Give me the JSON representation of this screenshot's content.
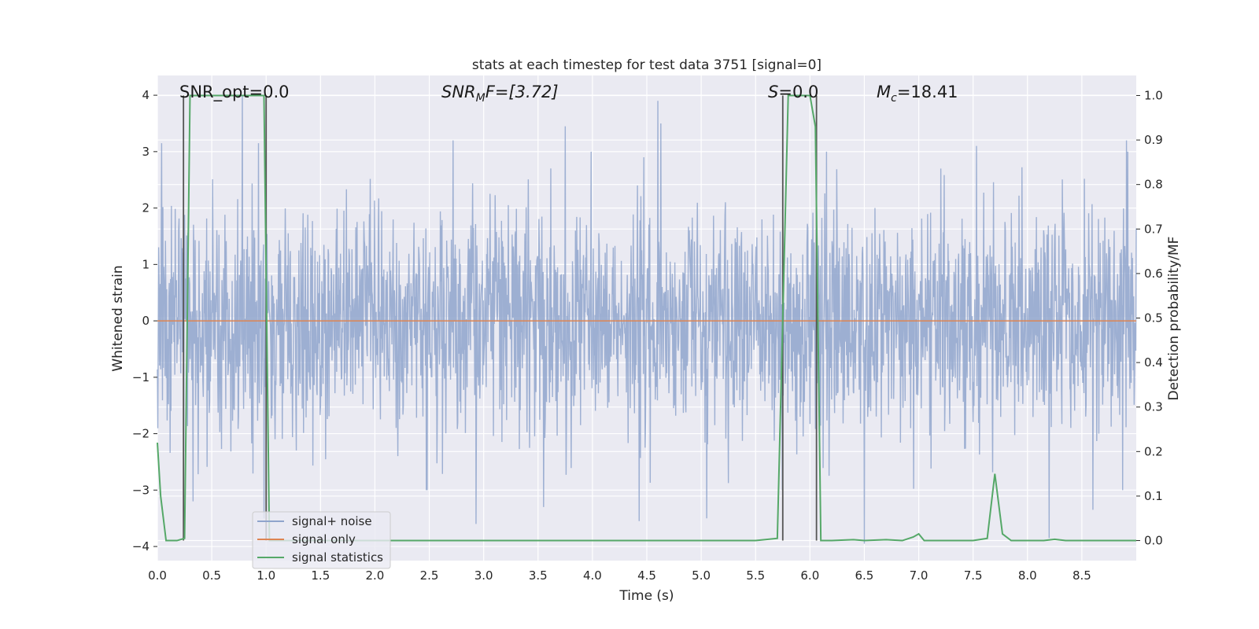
{
  "chart_data": {
    "type": "line",
    "title": "stats at each timestep for test data 3751 [signal=0]",
    "xlabel": "Time (s)",
    "ylabel": "Whitened strain",
    "ylabel_right": "Detection probability/MF",
    "xlim": [
      0,
      9
    ],
    "ylim": [
      -4.25,
      4.35
    ],
    "ylim_right": [
      -0.045,
      1.045
    ],
    "x_ticks": [
      "0.0",
      "0.5",
      "1.0",
      "1.5",
      "2.0",
      "2.5",
      "3.0",
      "3.5",
      "4.0",
      "4.5",
      "5.0",
      "5.5",
      "6.0",
      "6.5",
      "7.0",
      "7.5",
      "8.0",
      "8.5"
    ],
    "x_tick_values": [
      0,
      0.5,
      1,
      1.5,
      2,
      2.5,
      3,
      3.5,
      4,
      4.5,
      5,
      5.5,
      6,
      6.5,
      7,
      7.5,
      8,
      8.5
    ],
    "y_ticks": [
      "4",
      "3",
      "2",
      "1",
      "0",
      "−1",
      "−2",
      "−3",
      "−4"
    ],
    "y_tick_values": [
      4,
      3,
      2,
      1,
      0,
      -1,
      -2,
      -3,
      -4
    ],
    "y2_ticks": [
      "1.0",
      "0.9",
      "0.8",
      "0.7",
      "0.6",
      "0.5",
      "0.4",
      "0.3",
      "0.2",
      "0.1",
      "0.0"
    ],
    "y2_tick_values": [
      1,
      0.9,
      0.8,
      0.7,
      0.6,
      0.5,
      0.4,
      0.3,
      0.2,
      0.1,
      0
    ],
    "grid": true,
    "legend_placement": "lower-left",
    "annotations": [
      {
        "id": "snr-opt",
        "x": 0.2,
        "text": "SNR_opt=0.0"
      },
      {
        "id": "snr-mf",
        "x": 2.6,
        "text": "SNR_MF=[3.72]",
        "base": "SNR",
        "sub": "M",
        "rest": "F=[3.72]"
      },
      {
        "id": "s",
        "x": 5.6,
        "text": "S=0.0",
        "base": "S",
        "rest": "=0.0"
      },
      {
        "id": "mc",
        "x": 6.6,
        "text": "M_c=18.41",
        "base": "M",
        "sub": "c",
        "rest": "=18.41"
      }
    ],
    "series": [
      {
        "name": "signal+ noise",
        "color": "#8fa4cc",
        "axis": "left",
        "sample_rate": 256,
        "amplitude_rms": 1.0,
        "seed": 3751,
        "peaks": [
          [
            0.04,
            3.15
          ],
          [
            0.78,
            4.0
          ],
          [
            0.93,
            3.15
          ],
          [
            2.72,
            3.2
          ],
          [
            3.75,
            3.45
          ],
          [
            4.6,
            3.9
          ],
          [
            4.63,
            3.5
          ],
          [
            7.53,
            3.1
          ],
          [
            8.91,
            3.2
          ],
          [
            0.33,
            -3.2
          ],
          [
            0.98,
            -3.5
          ],
          [
            2.93,
            -3.6
          ],
          [
            3.55,
            -3.3
          ],
          [
            4.43,
            -3.55
          ],
          [
            5.05,
            -3.5
          ],
          [
            6.5,
            -3.95
          ],
          [
            8.2,
            -3.85
          ],
          [
            8.6,
            -3.35
          ]
        ]
      },
      {
        "name": "signal only",
        "color": "#dd8452",
        "axis": "left",
        "x": [
          0,
          9
        ],
        "y": [
          0,
          0
        ]
      },
      {
        "name": "signal statistics",
        "color": "#55a868",
        "axis": "right",
        "x": [
          0,
          0.03,
          0.08,
          0.18,
          0.25,
          0.3,
          0.5,
          0.98,
          1.03,
          1.08,
          1.5,
          2.0,
          3.0,
          4.0,
          5.0,
          5.5,
          5.7,
          5.75,
          5.8,
          5.85,
          6.0,
          6.05,
          6.1,
          6.2,
          6.4,
          6.5,
          6.7,
          6.85,
          6.95,
          7.0,
          7.05,
          7.5,
          7.63,
          7.7,
          7.77,
          7.85,
          8.0,
          8.15,
          8.25,
          8.35,
          8.5,
          9.0
        ],
        "y": [
          0.22,
          0.1,
          0.0,
          0.0,
          0.005,
          1.0,
          1.0,
          1.0,
          0.0,
          0.0,
          0.0,
          0.0,
          0.0,
          0.0,
          0.0,
          0.0,
          0.005,
          0.5,
          1.0,
          1.0,
          1.0,
          0.93,
          0.0,
          0.0,
          0.002,
          0.0,
          0.002,
          0.0,
          0.008,
          0.015,
          0.0,
          0.0,
          0.005,
          0.15,
          0.015,
          0.0,
          0.0,
          0.0,
          0.003,
          0.0,
          0.0,
          0.0
        ]
      }
    ],
    "markers": [
      {
        "x": 0.24,
        "y_right": [
          0.0,
          1.0
        ],
        "color": "#555555"
      },
      {
        "x": 1.0,
        "y_right": [
          0.0,
          1.0
        ],
        "color": "#555555"
      },
      {
        "x": 5.75,
        "y_right": [
          0.0,
          1.0
        ],
        "color": "#555555"
      },
      {
        "x": 6.06,
        "y_right": [
          0.0,
          1.0
        ],
        "color": "#555555"
      }
    ]
  }
}
